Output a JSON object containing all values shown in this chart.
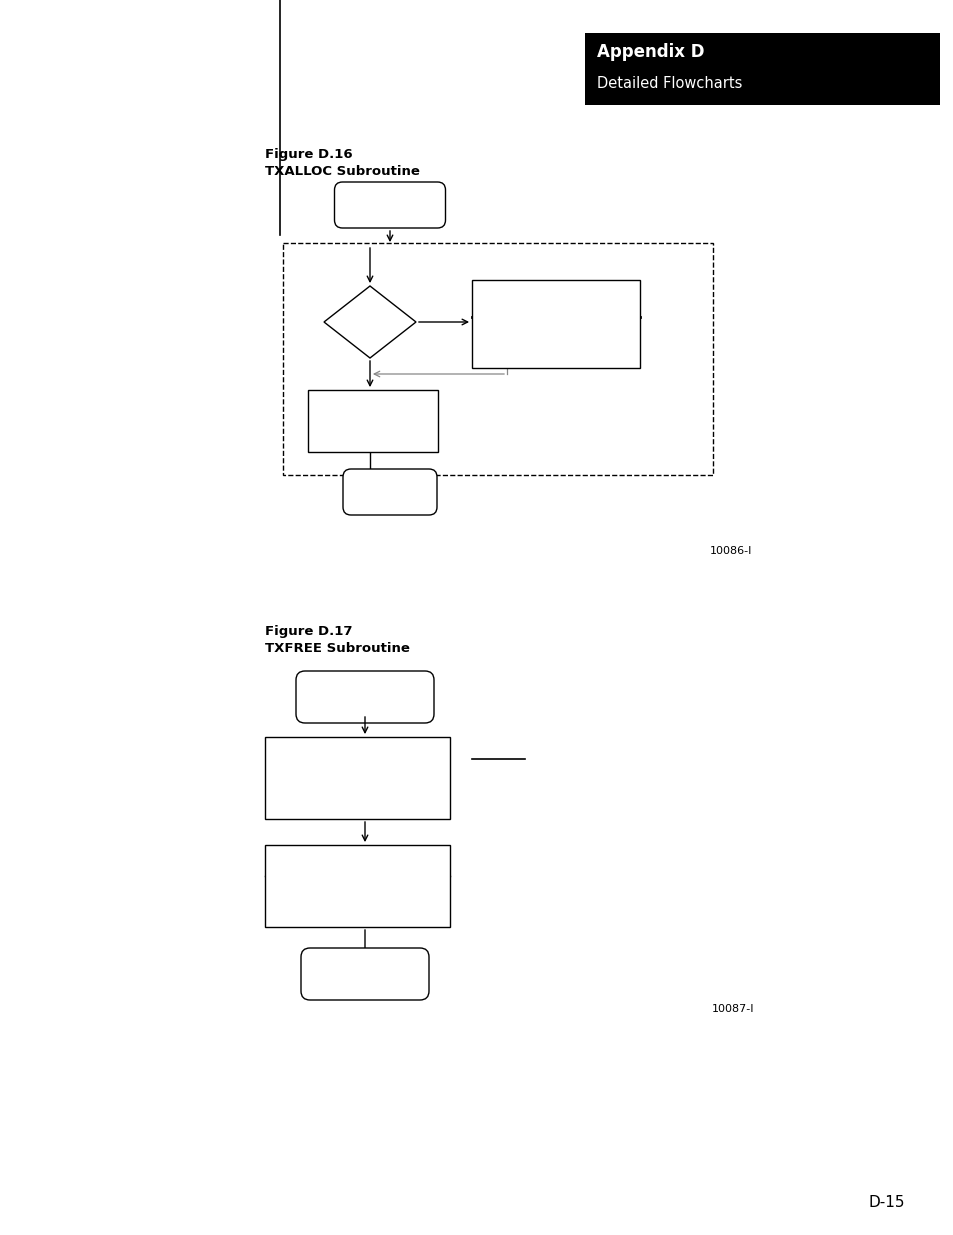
{
  "page_bg": "#ffffff",
  "header_title": "Appendix D",
  "header_subtitle": "Detailed Flowcharts",
  "fig16_title": "Figure D.16",
  "fig16_subtitle": "TXALLOC Subroutine",
  "fig17_title": "Figure D.17",
  "fig17_subtitle": "TXFREE Subroutine",
  "ref1": "10086-I",
  "ref2": "10087-I",
  "footer": "D-15"
}
